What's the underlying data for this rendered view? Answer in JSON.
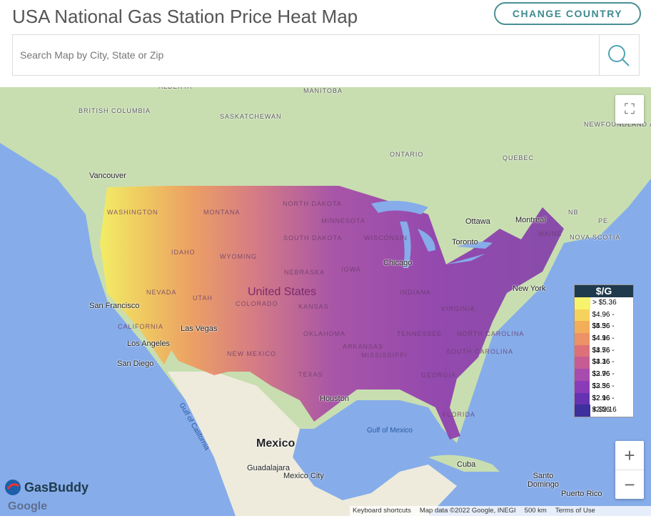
{
  "header": {
    "title": "USA National Gas Station Price Heat Map",
    "button": "CHANGE COUNTRY"
  },
  "search": {
    "placeholder": "Search Map by City, State or Zip"
  },
  "map": {
    "labels": [
      "ALBERTA",
      "MANITOBA",
      "BRITISH COLUMBIA",
      "SASKATCHEWAN",
      "ONTARIO",
      "QUEBEC",
      "NEWFOUNDLAND AND LABRADOR",
      "NB",
      "PE",
      "NOVA SCOTIA",
      "Vancouver",
      "Ottawa",
      "Montreal",
      "Toronto",
      "WASHINGTON",
      "MONTANA",
      "NORTH DAKOTA",
      "MINNESOTA",
      "SOUTH DAKOTA",
      "WISCONSIN",
      "IDAHO",
      "WYOMING",
      "NEBRASKA",
      "IOWA",
      "NEVADA",
      "UTAH",
      "COLORADO",
      "KANSAS",
      "INDIANA",
      "VIRGINIA",
      "CALIFORNIA",
      "NEW MEXICO",
      "OKLAHOMA",
      "ARKANSAS",
      "TENNESSEE",
      "NORTH CAROLINA",
      "SOUTH CAROLINA",
      "MISSISSIPPI",
      "GEORGIA",
      "TEXAS",
      "FLORIDA",
      "MAINE",
      "United States",
      "Chicago",
      "New York",
      "San Francisco",
      "Las Vegas",
      "Los Angeles",
      "San Diego",
      "Houston",
      "Gulf of Mexico",
      "Gulf of California",
      "Mexico",
      "Guadalajara",
      "Mexico City",
      "Cuba",
      "Santo Domingo",
      "Puerto Rico"
    ]
  },
  "legend": {
    "title": "$/G",
    "items": [
      {
        "label": "> $5.36",
        "color": "#f8f36c"
      },
      {
        "label": "$4.96 - $5.36",
        "color": "#f5d25c"
      },
      {
        "label": "$4.56 - $4.96",
        "color": "#f2ae58"
      },
      {
        "label": "$4.16 - $4.56",
        "color": "#ec9266"
      },
      {
        "label": "$3.76 - $4.16",
        "color": "#dc7179"
      },
      {
        "label": "$3.36 - $3.76",
        "color": "#c65c93"
      },
      {
        "label": "$2.96 - $3.36",
        "color": "#a84bae"
      },
      {
        "label": "$2.56 - $2.96",
        "color": "#8a3cb8"
      },
      {
        "label": "$2.16 - $2.56",
        "color": "#6532b2"
      },
      {
        "label": "< $2.16",
        "color": "#3d2f9c"
      }
    ]
  },
  "controls": {
    "zoom_in": "+",
    "zoom_out": "−"
  },
  "footer": {
    "brand": "GasBuddy",
    "google": "Google",
    "links": [
      "Keyboard shortcuts",
      "Map data ©2022 Google, INEGI",
      "500 km",
      "Terms of Use"
    ]
  }
}
